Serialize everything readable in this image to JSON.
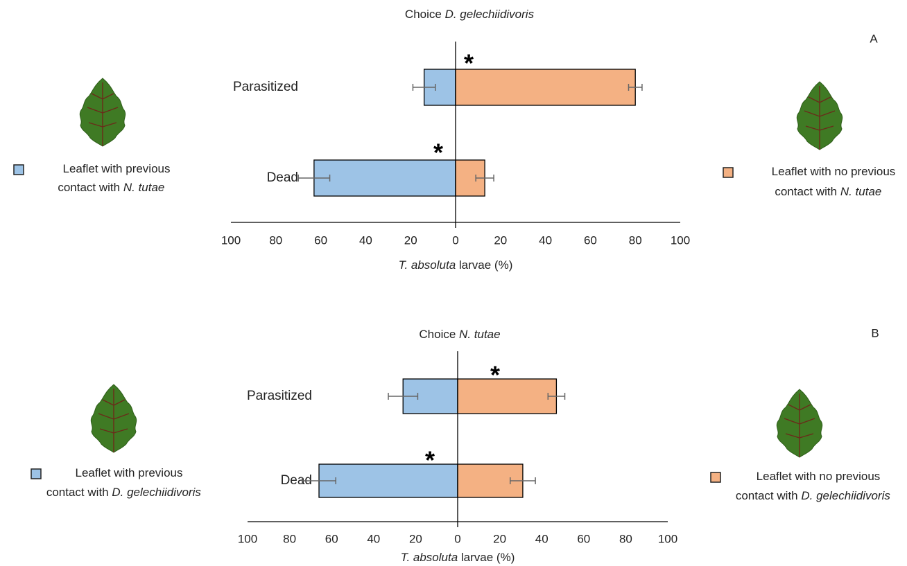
{
  "chart_data": [
    {
      "type": "bar",
      "title": "Choice D. gelechiidivoris",
      "panel_label": "A",
      "categories": [
        "Parasitized",
        "Dead"
      ],
      "series": [
        {
          "name": "Leaflet with previous contact with N. tutae",
          "color": "#9dc3e6",
          "values": [
            -14,
            -63
          ],
          "errors": [
            5,
            7
          ]
        },
        {
          "name": "Leaflet with no previous contact with N. tutae",
          "color": "#f4b183",
          "values": [
            80,
            13
          ],
          "errors": [
            3,
            4
          ]
        }
      ],
      "xlim": [
        -100,
        100
      ],
      "xticks": [
        {
          "value": -100,
          "label": "100"
        },
        {
          "value": -80,
          "label": "80"
        },
        {
          "value": -60,
          "label": "60"
        },
        {
          "value": -40,
          "label": "40"
        },
        {
          "value": -20,
          "label": "20"
        },
        0,
        20,
        40,
        60,
        80,
        100
      ],
      "xlabel": "T. absoluta larvae (%)",
      "annotations": [
        "*",
        "*"
      ]
    },
    {
      "type": "bar",
      "title": "Choice N. tutae",
      "panel_label": "B",
      "categories": [
        "Parasitized",
        "Dead"
      ],
      "series": [
        {
          "name": "Leaflet with previous contact with D. gelechiidivoris",
          "color": "#9dc3e6",
          "values": [
            -26,
            -66
          ],
          "errors": [
            7,
            8
          ]
        },
        {
          "name": "Leaflet with no previous contact with D. gelechiidivoris",
          "color": "#f4b183",
          "values": [
            47,
            31
          ],
          "errors": [
            4,
            6
          ]
        }
      ],
      "xlim": [
        -100,
        100
      ],
      "xticks": [
        {
          "value": -100,
          "label": "100"
        },
        {
          "value": -80,
          "label": "80"
        },
        {
          "value": -60,
          "label": "60"
        },
        {
          "value": -40,
          "label": "40"
        },
        {
          "value": -20,
          "label": "20"
        },
        0,
        20,
        40,
        60,
        80,
        100
      ],
      "xlabel": "T. absoluta larvae (%)",
      "annotations": [
        "*",
        "*"
      ]
    }
  ]
}
